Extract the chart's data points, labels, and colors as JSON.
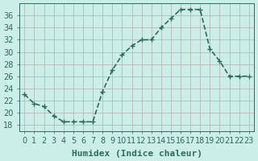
{
  "x": [
    0,
    1,
    2,
    3,
    4,
    5,
    6,
    7,
    8,
    9,
    10,
    11,
    12,
    13,
    14,
    15,
    16,
    17,
    18,
    19,
    20,
    21,
    22,
    23
  ],
  "y": [
    23,
    21.5,
    21,
    19.5,
    18.5,
    18.5,
    18.5,
    18.5,
    23.5,
    27,
    29.5,
    31,
    32,
    32,
    34,
    35.5,
    37,
    37,
    37,
    30.5,
    28.5,
    26,
    26,
    26
  ],
  "line_color": "#2e6b5e",
  "marker": "+",
  "marker_size": 5,
  "bg_color": "#cceee8",
  "xlabel": "Humidex (Indice chaleur)",
  "xlim": [
    -0.5,
    23.5
  ],
  "ylim": [
    17,
    38
  ],
  "yticks": [
    18,
    20,
    22,
    24,
    26,
    28,
    30,
    32,
    34,
    36
  ],
  "xticks": [
    0,
    1,
    2,
    3,
    4,
    5,
    6,
    7,
    8,
    9,
    10,
    11,
    12,
    13,
    14,
    15,
    16,
    17,
    18,
    19,
    20,
    21,
    22,
    23
  ],
  "axis_color": "#2e6b5e",
  "label_fontsize": 7,
  "xlabel_fontsize": 8,
  "line_width": 1.2
}
